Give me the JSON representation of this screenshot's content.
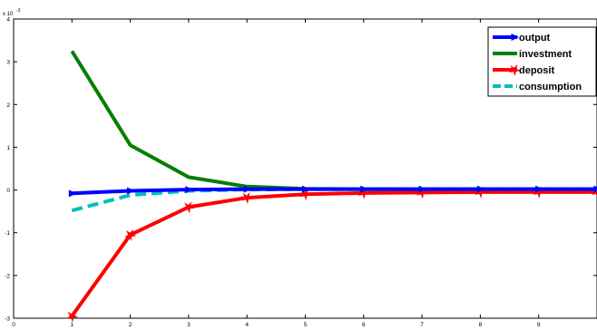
{
  "chart_data": {
    "type": "line",
    "scale_label": "x 10",
    "scale_exponent": "-3",
    "x": [
      1,
      2,
      3,
      4,
      5,
      6,
      7,
      8,
      9,
      10
    ],
    "xlim": [
      0,
      10
    ],
    "ylim": [
      -3,
      4
    ],
    "xticks": [
      "0",
      "1",
      "2",
      "3",
      "4",
      "5",
      "6",
      "7",
      "8",
      "9"
    ],
    "yticks": [
      "-3",
      "-2",
      "-1",
      "0",
      "1",
      "2",
      "3",
      "4"
    ],
    "legend_position": "top-right",
    "grid": false,
    "series": [
      {
        "name": "output",
        "color": "#0000ff",
        "style": "solid",
        "marker": "triangle-right",
        "values": [
          -0.08,
          -0.02,
          0.01,
          0.02,
          0.02,
          0.02,
          0.02,
          0.02,
          0.02,
          0.02
        ]
      },
      {
        "name": "investment",
        "color": "#008000",
        "style": "solid",
        "marker": "none",
        "values": [
          3.25,
          1.05,
          0.3,
          0.08,
          0.03,
          0.02,
          0.02,
          0.02,
          0.02,
          0.02
        ]
      },
      {
        "name": "deposit",
        "color": "#ff0000",
        "style": "solid",
        "marker": "star",
        "values": [
          -2.95,
          -1.05,
          -0.4,
          -0.18,
          -0.1,
          -0.07,
          -0.06,
          -0.05,
          -0.05,
          -0.05
        ]
      },
      {
        "name": "consumption",
        "color": "#00bfbf",
        "style": "dashed",
        "marker": "none",
        "values": [
          -0.48,
          -0.12,
          -0.02,
          0.01,
          0.02,
          0.02,
          0.02,
          0.02,
          0.02,
          0.02
        ]
      }
    ]
  }
}
